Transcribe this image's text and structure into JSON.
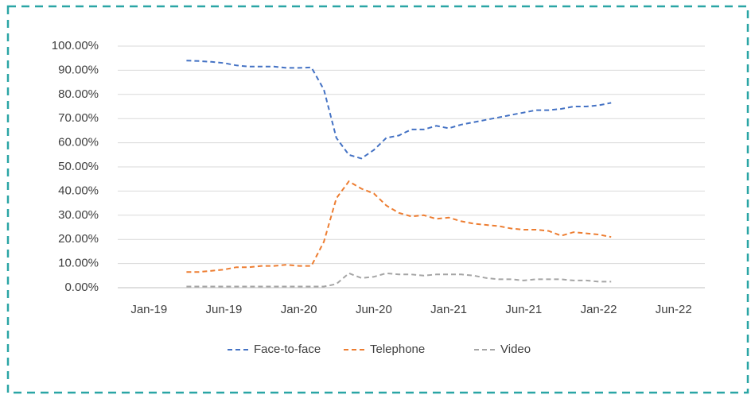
{
  "chart_data": {
    "type": "line",
    "categories": [
      null,
      null,
      "Jan-19",
      null,
      null,
      null,
      null,
      null,
      "Jun-19",
      null,
      null,
      null,
      null,
      null,
      "Jan-20",
      null,
      null,
      null,
      null,
      null,
      "Jun-20",
      null,
      null,
      null,
      null,
      null,
      "Jan-21",
      null,
      null,
      null,
      null,
      null,
      "Jun-21",
      null,
      null,
      null,
      null,
      null,
      "Jan-22",
      null,
      null,
      null,
      null,
      null,
      "Jun-22",
      null,
      null
    ],
    "series": [
      {
        "name": "Face-to-face",
        "color": "#4472c4",
        "values": [
          null,
          null,
          null,
          null,
          null,
          94,
          93.8,
          93.5,
          93,
          92,
          91.5,
          91.5,
          91.5,
          91,
          91,
          91.2,
          82,
          62,
          55,
          53.5,
          57,
          62,
          63,
          65.5,
          65.5,
          67,
          66,
          67.5,
          68.5,
          69.5,
          70.5,
          71.5,
          72.5,
          73.5,
          73.5,
          74,
          75,
          75,
          75.5,
          76.5,
          null,
          null,
          null,
          null,
          null,
          null,
          null
        ]
      },
      {
        "name": "Telephone",
        "color": "#ed7d31",
        "values": [
          null,
          null,
          null,
          null,
          null,
          6.5,
          6.5,
          7,
          7.5,
          8.5,
          8.5,
          9,
          9,
          9.5,
          9,
          9,
          19,
          37,
          44,
          41,
          39,
          34,
          31,
          29.5,
          30,
          28.5,
          29,
          27.5,
          26.5,
          26,
          25.5,
          24.5,
          24,
          24,
          23.5,
          21.5,
          23,
          22.5,
          22,
          21,
          null,
          null,
          null,
          null,
          null,
          null,
          null
        ]
      },
      {
        "name": "Video",
        "color": "#a5a5a5",
        "values": [
          null,
          null,
          null,
          null,
          null,
          0.5,
          0.5,
          0.5,
          0.5,
          0.5,
          0.5,
          0.5,
          0.5,
          0.5,
          0.5,
          0.5,
          0.5,
          1.5,
          6,
          4,
          4.5,
          6,
          5.5,
          5.5,
          5,
          5.5,
          5.5,
          5.5,
          5,
          4,
          3.5,
          3.5,
          3,
          3.5,
          3.5,
          3.5,
          3,
          3,
          2.5,
          2.5,
          null,
          null,
          null,
          null,
          null,
          null,
          null
        ]
      }
    ],
    "ylim": [
      0,
      100
    ],
    "yticks": [
      {
        "value": 0,
        "label": "0.00%"
      },
      {
        "value": 10,
        "label": "10.00%"
      },
      {
        "value": 20,
        "label": "20.00%"
      },
      {
        "value": 30,
        "label": "30.00%"
      },
      {
        "value": 40,
        "label": "40.00%"
      },
      {
        "value": 50,
        "label": "50.00%"
      },
      {
        "value": 60,
        "label": "60.00%"
      },
      {
        "value": 70,
        "label": "70.00%"
      },
      {
        "value": 80,
        "label": "80.00%"
      },
      {
        "value": 90,
        "label": "90.00%"
      },
      {
        "value": 100,
        "label": "100.00%"
      }
    ],
    "grid": true,
    "legend": "bottom"
  }
}
